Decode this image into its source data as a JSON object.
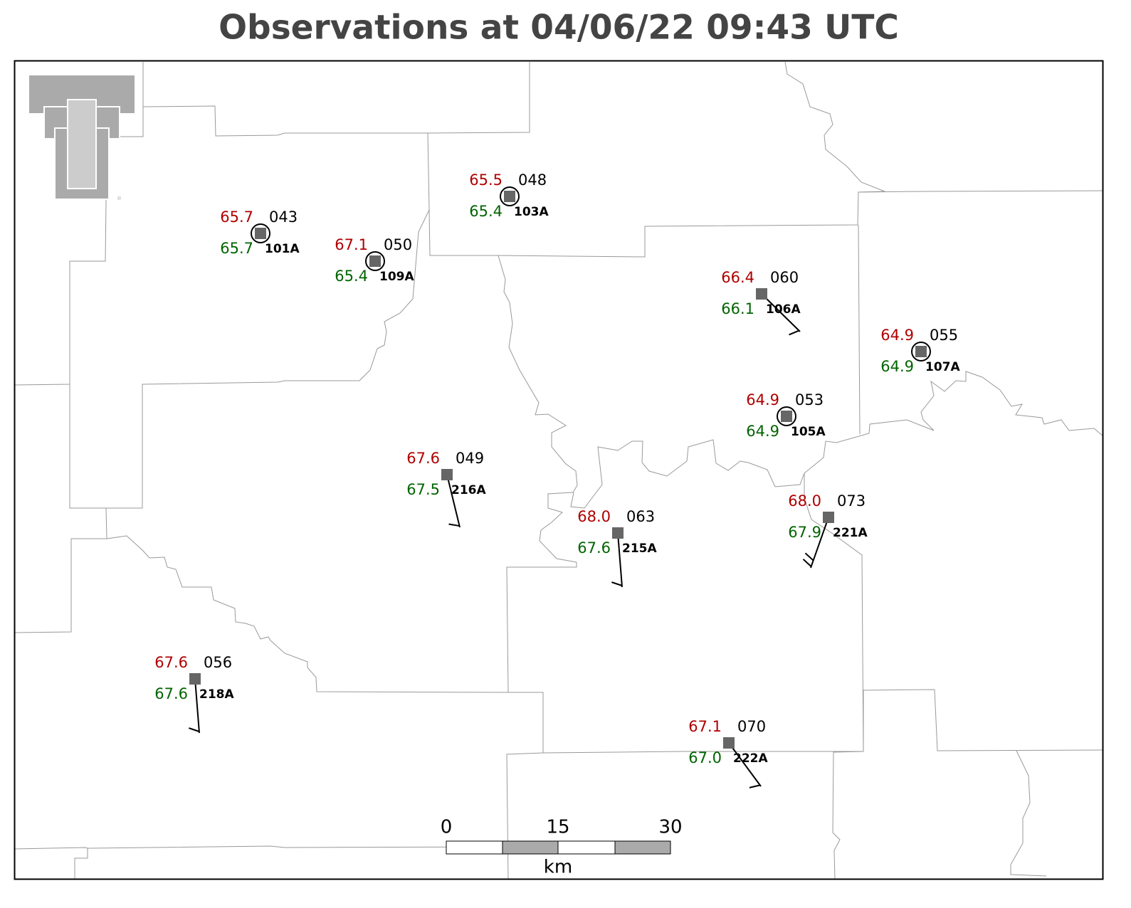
{
  "title": "Observations at 04/06/22 09:43 UTC",
  "stations": [
    {
      "id": "101A",
      "temperature": "65.7",
      "dewpoint": "65.7",
      "pressure": "043"
    },
    {
      "id": "109A",
      "temperature": "67.1",
      "dewpoint": "65.4",
      "pressure": "050"
    },
    {
      "id": "103A",
      "temperature": "65.5",
      "dewpoint": "65.4",
      "pressure": "048"
    },
    {
      "id": "106A",
      "temperature": "66.4",
      "dewpoint": "66.1",
      "pressure": "060"
    },
    {
      "id": "107A",
      "temperature": "64.9",
      "dewpoint": "64.9",
      "pressure": "055"
    },
    {
      "id": "105A",
      "temperature": "64.9",
      "dewpoint": "64.9",
      "pressure": "053"
    },
    {
      "id": "216A",
      "temperature": "67.6",
      "dewpoint": "67.5",
      "pressure": "049"
    },
    {
      "id": "215A",
      "temperature": "68.0",
      "dewpoint": "67.6",
      "pressure": "063"
    },
    {
      "id": "221A",
      "temperature": "68.0",
      "dewpoint": "67.9",
      "pressure": "073"
    },
    {
      "id": "218A",
      "temperature": "67.6",
      "dewpoint": "67.6",
      "pressure": "056"
    },
    {
      "id": "222A",
      "temperature": "67.1",
      "dewpoint": "67.0",
      "pressure": "070"
    }
  ],
  "scale_bar": {
    "ticks": [
      "0",
      "15",
      "30"
    ],
    "unit": "km"
  }
}
